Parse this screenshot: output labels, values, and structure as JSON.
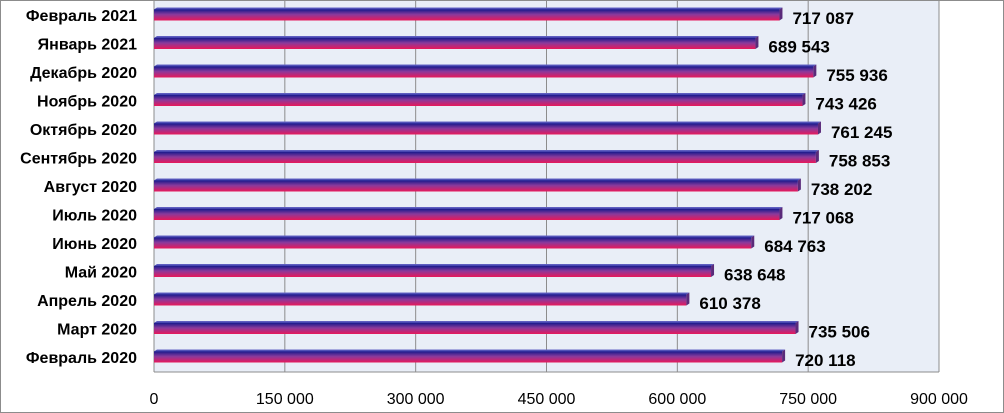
{
  "chart_data": {
    "type": "bar",
    "orientation": "horizontal",
    "categories": [
      "Февраль 2021",
      "Январь 2021",
      "Декабрь 2020",
      "Ноябрь 2020",
      "Октябрь 2020",
      "Сентябрь 2020",
      "Август 2020",
      "Июль 2020",
      "Июнь 2020",
      "Май 2020",
      "Апрель 2020",
      "Март 2020",
      "Февраль 2020"
    ],
    "values": [
      717087,
      689543,
      755936,
      743426,
      761245,
      758853,
      738202,
      717068,
      684763,
      638648,
      610378,
      735506,
      720118
    ],
    "value_labels": [
      "717 087",
      "689 543",
      "755 936",
      "743 426",
      "761 245",
      "758 853",
      "738 202",
      "717 068",
      "684 763",
      "638 648",
      "610 378",
      "735 506",
      "720 118"
    ],
    "x_ticks": [
      0,
      150000,
      300000,
      450000,
      600000,
      750000,
      900000
    ],
    "x_tick_labels": [
      "0",
      "150 000",
      "300 000",
      "450 000",
      "600 000",
      "750 000",
      "900 000"
    ],
    "xlim": [
      0,
      900000
    ],
    "grid": "vertical",
    "legend": "none",
    "colors": {
      "bar_top": "#1a1a8c",
      "bar_mid": "#8a3a9c",
      "bar_bottom": "#e8185a",
      "plot_background": "#e9eef7",
      "grid": "#8c8c8c"
    }
  }
}
